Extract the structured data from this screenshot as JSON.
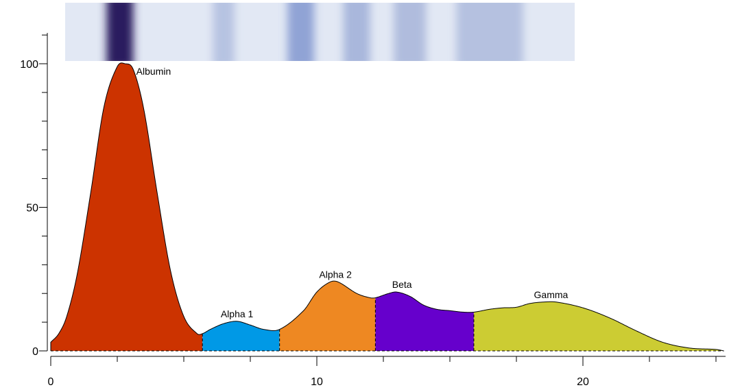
{
  "chart_data": {
    "type": "area",
    "title": "",
    "xlabel": "",
    "ylabel": "",
    "xlim": [
      -0.1,
      25.5
    ],
    "ylim": [
      0,
      110
    ],
    "x_ticks": [
      0,
      2.5,
      5,
      7.5,
      10,
      12.5,
      15,
      17.5,
      20,
      22.5,
      25
    ],
    "x_tick_labels": [
      {
        "value": 0,
        "label": "0"
      },
      {
        "value": 10,
        "label": "10"
      },
      {
        "value": 20,
        "label": "20"
      }
    ],
    "y_ticks": [
      0,
      10,
      20,
      30,
      40,
      50,
      60,
      70,
      80,
      90,
      100,
      110
    ],
    "y_tick_labels": [
      {
        "value": 0,
        "label": "0"
      },
      {
        "value": 50,
        "label": "50"
      },
      {
        "value": 100,
        "label": "100"
      }
    ],
    "grid": false,
    "curve": {
      "x": [
        0,
        0.3,
        0.6,
        1.0,
        1.5,
        2.0,
        2.5,
        2.8,
        3.1,
        3.5,
        4.0,
        4.5,
        5.0,
        5.5,
        5.7,
        6.0,
        6.5,
        7.0,
        7.5,
        8.0,
        8.6,
        9.5,
        10.0,
        10.5,
        10.8,
        11.5,
        12.0,
        12.2,
        12.7,
        13.0,
        13.5,
        14.0,
        14.5,
        15.0,
        15.5,
        15.9,
        16.5,
        17.0,
        17.5,
        18.0,
        18.5,
        19.0,
        20.0,
        21.0,
        22.0,
        23.0,
        24.0,
        25.0,
        25.3
      ],
      "y": [
        3,
        6,
        12,
        27,
        55,
        85,
        99,
        100,
        98,
        84,
        55,
        28,
        12,
        6,
        6,
        7.5,
        9.5,
        10.3,
        9.0,
        7.5,
        7.5,
        14,
        20.5,
        24,
        24,
        20,
        18.5,
        18.5,
        20,
        20.5,
        19,
        16,
        14.5,
        14,
        13.5,
        13.5,
        14.5,
        15,
        15.2,
        16.5,
        17,
        17,
        15,
        11.5,
        7,
        3,
        1,
        0.5,
        0
      ]
    },
    "fractions": [
      {
        "name": "Albumin",
        "x_start": 0,
        "x_end": 5.7,
        "color": "#cc3300",
        "label_x": 3.6,
        "label_y": 100
      },
      {
        "name": "Alpha 1",
        "x_start": 5.7,
        "x_end": 8.6,
        "color": "#0099e6",
        "label_x": 7.0,
        "label_y": 10.3
      },
      {
        "name": "Alpha 2",
        "x_start": 8.6,
        "x_end": 12.2,
        "color": "#ee8822",
        "label_x": 10.7,
        "label_y": 24
      },
      {
        "name": "Beta",
        "x_start": 12.2,
        "x_end": 15.9,
        "color": "#6600cc",
        "label_x": 13.2,
        "label_y": 20.5
      },
      {
        "name": "Gamma",
        "x_start": 15.9,
        "x_end": 25.3,
        "color": "#cccc33",
        "label_x": 18.8,
        "label_y": 17
      }
    ],
    "gel_strip": {
      "background": "#e2e8f4",
      "bands": [
        {
          "x": 2.6,
          "width": 1.0,
          "intensity": 1.0,
          "color": "#2a1a5e"
        },
        {
          "x": 6.5,
          "width": 0.8,
          "intensity": 0.25,
          "color": "#8fa0d0"
        },
        {
          "x": 9.4,
          "width": 1.0,
          "intensity": 0.55,
          "color": "#6e86c8"
        },
        {
          "x": 11.5,
          "width": 1.0,
          "intensity": 0.4,
          "color": "#8598cc"
        },
        {
          "x": 13.5,
          "width": 1.2,
          "intensity": 0.35,
          "color": "#8a9ccd"
        },
        {
          "x": 16.5,
          "width": 2.5,
          "intensity": 0.3,
          "color": "#8fa0cf"
        }
      ]
    }
  }
}
